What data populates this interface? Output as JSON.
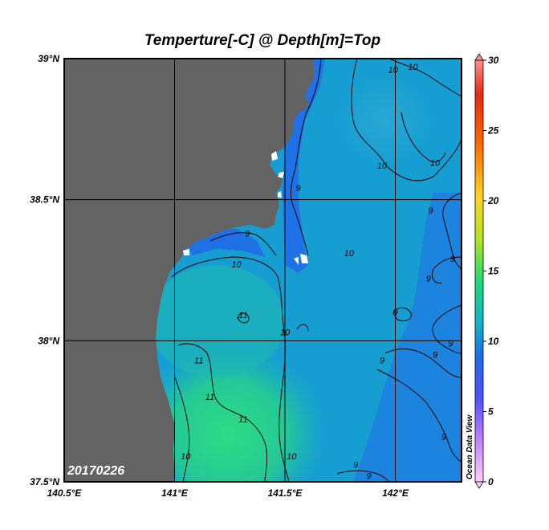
{
  "chart_data": {
    "type": "heatmap",
    "title": "Temperture[-C] @ Depth[m]=Top",
    "xlim": [
      140.5,
      142.3
    ],
    "ylim": [
      37.5,
      39.0
    ],
    "x_ticks": [
      {
        "value": 140.5,
        "label": "140.5°E"
      },
      {
        "value": 141.0,
        "label": "141°E"
      },
      {
        "value": 141.5,
        "label": "141.5°E"
      },
      {
        "value": 142.0,
        "label": "142°E"
      }
    ],
    "y_ticks": [
      {
        "value": 37.5,
        "label": "37.5°N"
      },
      {
        "value": 38.0,
        "label": "38°N"
      },
      {
        "value": 38.5,
        "label": "38.5°N"
      },
      {
        "value": 39.0,
        "label": "39°N"
      }
    ],
    "grid": true,
    "date_label": "20170226",
    "colorbar": {
      "range": [
        0,
        30
      ],
      "ticks": [
        0,
        5,
        10,
        15,
        20,
        25,
        30
      ],
      "label": "Ocean Data View",
      "colors": [
        "#ffd0ff",
        "#c080ff",
        "#5050ff",
        "#1c6ee6",
        "#14b4c8",
        "#18d878",
        "#b4e61e",
        "#ffd21e",
        "#ff6a00",
        "#e62814",
        "#ff9090"
      ]
    },
    "contour_labels": [
      {
        "text": "10",
        "lon": 142.08,
        "lat": 38.96
      },
      {
        "text": "10",
        "lon": 141.99,
        "lat": 38.95
      },
      {
        "text": "10",
        "lon": 141.94,
        "lat": 38.61
      },
      {
        "text": "10",
        "lon": 142.18,
        "lat": 38.62
      },
      {
        "text": "9",
        "lon": 141.56,
        "lat": 38.53
      },
      {
        "text": "9",
        "lon": 142.16,
        "lat": 38.45
      },
      {
        "text": "9",
        "lon": 141.33,
        "lat": 38.37
      },
      {
        "text": "10",
        "lon": 141.79,
        "lat": 38.3
      },
      {
        "text": "9",
        "lon": 142.26,
        "lat": 38.28
      },
      {
        "text": "9",
        "lon": 142.15,
        "lat": 38.21
      },
      {
        "text": "10",
        "lon": 141.28,
        "lat": 38.26
      },
      {
        "text": "11",
        "lon": 141.31,
        "lat": 38.08
      },
      {
        "text": "10",
        "lon": 141.5,
        "lat": 38.02
      },
      {
        "text": "9",
        "lon": 142.0,
        "lat": 38.09
      },
      {
        "text": "9",
        "lon": 142.25,
        "lat": 37.98
      },
      {
        "text": "9",
        "lon": 142.18,
        "lat": 37.94
      },
      {
        "text": "9",
        "lon": 141.94,
        "lat": 37.92
      },
      {
        "text": "11",
        "lon": 141.11,
        "lat": 37.92
      },
      {
        "text": "11",
        "lon": 141.16,
        "lat": 37.79
      },
      {
        "text": "11",
        "lon": 141.31,
        "lat": 37.71
      },
      {
        "text": "9",
        "lon": 142.22,
        "lat": 37.65
      },
      {
        "text": "10",
        "lon": 141.05,
        "lat": 37.58
      },
      {
        "text": "10",
        "lon": 141.53,
        "lat": 37.58
      },
      {
        "text": "9",
        "lon": 141.82,
        "lat": 37.55
      },
      {
        "text": "9",
        "lon": 141.88,
        "lat": 37.51
      }
    ]
  }
}
